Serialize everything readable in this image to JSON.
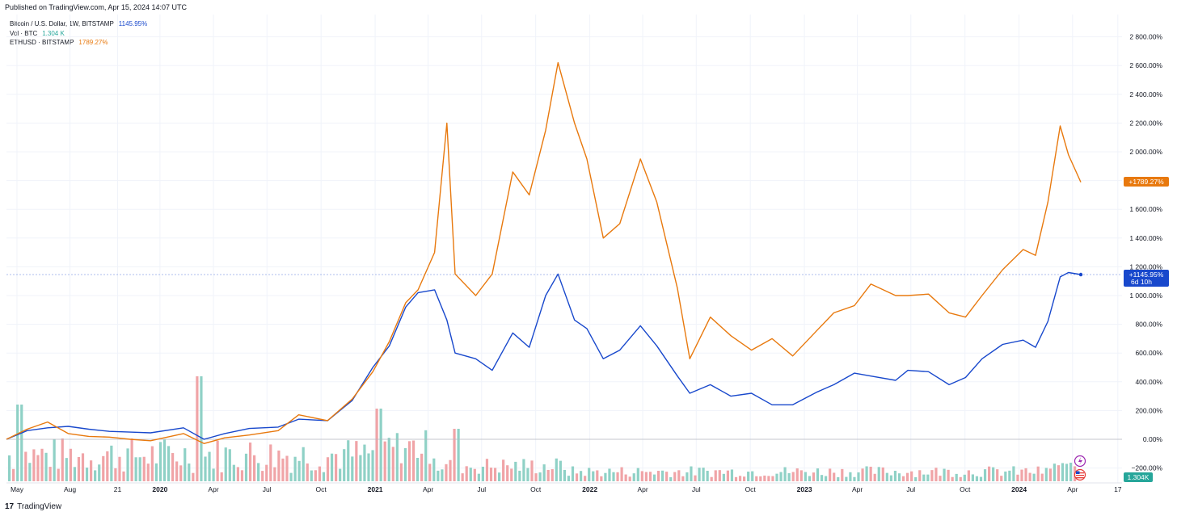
{
  "published_text": "Published on TradingView.com, Apr 15, 2024 14:07 UTC",
  "brand": {
    "logo": "17",
    "name": "TradingView"
  },
  "legend": [
    {
      "label": "Bitcoin / U.S. Dollar, 1W, BITSTAMP",
      "value": "1145.95%",
      "color": "#1848cc"
    },
    {
      "label": "Vol · BTC",
      "value": "1.304 K",
      "color": "#26a69a"
    },
    {
      "label": "ETHUSD · BITSTAMP",
      "value": "1789.27%",
      "color": "#e8790e"
    }
  ],
  "colors": {
    "btc": "#1848cc",
    "eth": "#e8790e",
    "vol_up": "#8fd1c6",
    "vol_down": "#f0a4a7",
    "grid": "#f0f3fa",
    "zero_line": "#9598a1"
  },
  "price_labels": {
    "eth": "+1789.27%",
    "btc": "+1145.95%",
    "btc_countdown": "6d 10h",
    "vol": "1.304K"
  },
  "icons": [
    "flash-icon",
    "us-flag-icon"
  ],
  "chart_data": {
    "type": "line",
    "scale": "percent",
    "x_ticks": [
      "May",
      "Aug",
      "21",
      "2020",
      "Apr",
      "Jul",
      "Oct",
      "2021",
      "Apr",
      "Jul",
      "Oct",
      "2022",
      "Apr",
      "Jul",
      "Oct",
      "2023",
      "Apr",
      "Jul",
      "Oct",
      "2024",
      "Apr",
      "17"
    ],
    "y_ticks": [
      "2 800.00%",
      "2 600.00%",
      "2 400.00%",
      "2 200.00%",
      "2 000.00%",
      "1 800.00%",
      "1 600.00%",
      "1 400.00%",
      "1 200.00%",
      "1 000.00%",
      "800.00%",
      "600.00%",
      "400.00%",
      "200.00%",
      "0.00%",
      "−200.00%"
    ],
    "ylim": [
      -250,
      2900
    ],
    "series": [
      {
        "name": "BTCUSD",
        "color": "#1848cc",
        "points": [
          [
            "2019-04-15",
            0
          ],
          [
            "2019-05-20",
            60
          ],
          [
            "2019-06-24",
            80
          ],
          [
            "2019-07-29",
            90
          ],
          [
            "2019-09-02",
            70
          ],
          [
            "2019-10-07",
            55
          ],
          [
            "2019-11-11",
            50
          ],
          [
            "2019-12-16",
            45
          ],
          [
            "2020-02-10",
            80
          ],
          [
            "2020-03-16",
            0
          ],
          [
            "2020-04-20",
            40
          ],
          [
            "2020-06-01",
            75
          ],
          [
            "2020-07-20",
            85
          ],
          [
            "2020-08-24",
            140
          ],
          [
            "2020-10-12",
            130
          ],
          [
            "2020-11-23",
            270
          ],
          [
            "2020-12-28",
            500
          ],
          [
            "2021-01-25",
            650
          ],
          [
            "2021-02-22",
            920
          ],
          [
            "2021-03-15",
            1020
          ],
          [
            "2021-04-12",
            1040
          ],
          [
            "2021-05-03",
            830
          ],
          [
            "2021-05-17",
            600
          ],
          [
            "2021-06-21",
            560
          ],
          [
            "2021-07-19",
            480
          ],
          [
            "2021-08-23",
            740
          ],
          [
            "2021-09-20",
            640
          ],
          [
            "2021-10-18",
            1000
          ],
          [
            "2021-11-08",
            1150
          ],
          [
            "2021-12-06",
            830
          ],
          [
            "2021-12-27",
            770
          ],
          [
            "2022-01-24",
            560
          ],
          [
            "2022-02-21",
            620
          ],
          [
            "2022-03-28",
            790
          ],
          [
            "2022-04-25",
            650
          ],
          [
            "2022-05-30",
            440
          ],
          [
            "2022-06-20",
            320
          ],
          [
            "2022-07-25",
            380
          ],
          [
            "2022-08-29",
            300
          ],
          [
            "2022-10-03",
            320
          ],
          [
            "2022-11-07",
            240
          ],
          [
            "2022-12-12",
            240
          ],
          [
            "2023-01-23",
            330
          ],
          [
            "2023-02-20",
            380
          ],
          [
            "2023-03-27",
            460
          ],
          [
            "2023-04-24",
            440
          ],
          [
            "2023-06-05",
            410
          ],
          [
            "2023-06-26",
            480
          ],
          [
            "2023-07-31",
            470
          ],
          [
            "2023-09-04",
            380
          ],
          [
            "2023-10-02",
            430
          ],
          [
            "2023-10-30",
            560
          ],
          [
            "2023-12-04",
            660
          ],
          [
            "2024-01-08",
            690
          ],
          [
            "2024-01-29",
            640
          ],
          [
            "2024-02-19",
            820
          ],
          [
            "2024-03-11",
            1130
          ],
          [
            "2024-03-25",
            1160
          ],
          [
            "2024-04-15",
            1146
          ]
        ]
      },
      {
        "name": "ETHUSD",
        "color": "#e8790e",
        "points": [
          [
            "2019-04-15",
            0
          ],
          [
            "2019-05-20",
            70
          ],
          [
            "2019-06-24",
            120
          ],
          [
            "2019-07-29",
            40
          ],
          [
            "2019-09-02",
            20
          ],
          [
            "2019-10-07",
            15
          ],
          [
            "2019-11-11",
            0
          ],
          [
            "2019-12-16",
            -10
          ],
          [
            "2020-02-10",
            40
          ],
          [
            "2020-03-16",
            -30
          ],
          [
            "2020-04-20",
            10
          ],
          [
            "2020-06-01",
            30
          ],
          [
            "2020-07-20",
            60
          ],
          [
            "2020-08-24",
            170
          ],
          [
            "2020-10-12",
            130
          ],
          [
            "2020-11-23",
            280
          ],
          [
            "2020-12-28",
            470
          ],
          [
            "2021-01-25",
            680
          ],
          [
            "2021-02-22",
            950
          ],
          [
            "2021-03-15",
            1040
          ],
          [
            "2021-04-12",
            1300
          ],
          [
            "2021-05-03",
            2200
          ],
          [
            "2021-05-17",
            1150
          ],
          [
            "2021-06-21",
            1000
          ],
          [
            "2021-07-19",
            1150
          ],
          [
            "2021-08-23",
            1860
          ],
          [
            "2021-09-20",
            1700
          ],
          [
            "2021-10-18",
            2150
          ],
          [
            "2021-11-08",
            2620
          ],
          [
            "2021-12-06",
            2200
          ],
          [
            "2021-12-27",
            1950
          ],
          [
            "2022-01-24",
            1400
          ],
          [
            "2022-02-21",
            1500
          ],
          [
            "2022-03-28",
            1950
          ],
          [
            "2022-04-25",
            1650
          ],
          [
            "2022-05-30",
            1050
          ],
          [
            "2022-06-20",
            560
          ],
          [
            "2022-07-25",
            850
          ],
          [
            "2022-08-29",
            720
          ],
          [
            "2022-10-03",
            620
          ],
          [
            "2022-11-07",
            700
          ],
          [
            "2022-12-12",
            580
          ],
          [
            "2023-01-23",
            760
          ],
          [
            "2023-02-20",
            880
          ],
          [
            "2023-03-27",
            930
          ],
          [
            "2023-04-24",
            1080
          ],
          [
            "2023-06-05",
            1000
          ],
          [
            "2023-06-26",
            1000
          ],
          [
            "2023-07-31",
            1010
          ],
          [
            "2023-09-04",
            880
          ],
          [
            "2023-10-02",
            850
          ],
          [
            "2023-10-30",
            1000
          ],
          [
            "2023-12-04",
            1180
          ],
          [
            "2024-01-08",
            1320
          ],
          [
            "2024-01-29",
            1280
          ],
          [
            "2024-02-19",
            1650
          ],
          [
            "2024-03-11",
            2180
          ],
          [
            "2024-03-25",
            1980
          ],
          [
            "2024-04-15",
            1789
          ]
        ]
      }
    ]
  }
}
